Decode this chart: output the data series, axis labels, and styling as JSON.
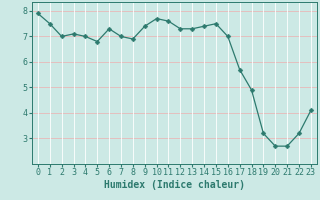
{
  "x": [
    0,
    1,
    2,
    3,
    4,
    5,
    6,
    7,
    8,
    9,
    10,
    11,
    12,
    13,
    14,
    15,
    16,
    17,
    18,
    19,
    20,
    21,
    22,
    23
  ],
  "y": [
    7.9,
    7.5,
    7.0,
    7.1,
    7.0,
    6.8,
    7.3,
    7.0,
    6.9,
    7.4,
    7.7,
    7.6,
    7.3,
    7.3,
    7.4,
    7.5,
    7.0,
    5.7,
    4.9,
    3.2,
    2.7,
    2.7,
    3.2,
    4.1
  ],
  "line_color": "#2d7a6e",
  "marker": "D",
  "marker_size": 2.5,
  "bg_color": "#cce9e5",
  "hgrid_color": "#e8b8b8",
  "vgrid_color": "#ffffff",
  "xlabel": "Humidex (Indice chaleur)",
  "xlim": [
    -0.5,
    23.5
  ],
  "ylim": [
    2.0,
    8.35
  ],
  "yticks": [
    3,
    4,
    5,
    6,
    7,
    8
  ],
  "xticks": [
    0,
    1,
    2,
    3,
    4,
    5,
    6,
    7,
    8,
    9,
    10,
    11,
    12,
    13,
    14,
    15,
    16,
    17,
    18,
    19,
    20,
    21,
    22,
    23
  ],
  "tick_color": "#2d7a6e",
  "label_fontsize": 7.0,
  "tick_fontsize": 6.0
}
